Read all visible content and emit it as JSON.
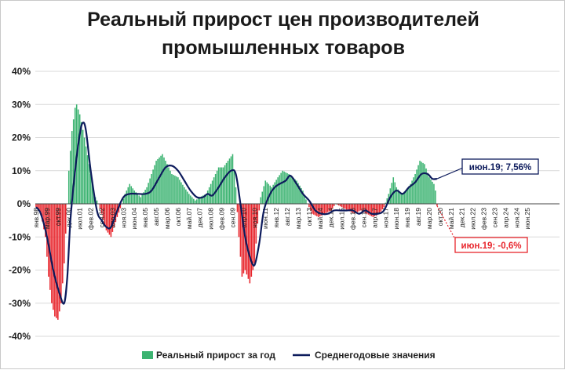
{
  "chart_data": {
    "type": "bar",
    "title_lines": [
      "Реальный прирост цен производителей",
      "промышленных товаров"
    ],
    "y_tick_labels": [
      "40%",
      "30%",
      "20%",
      "10%",
      "0%",
      "-10%",
      "-20%",
      "-30%",
      "-40%"
    ],
    "ylim": [
      -40,
      40
    ],
    "y_ticks": [
      40,
      30,
      20,
      10,
      0,
      -10,
      -20,
      -30,
      -40
    ],
    "grid": true,
    "x_start": "1998-01",
    "x_end": "2025-12",
    "x_tick_labels": [
      "янв.98",
      "мар.99",
      "окт.99",
      "дек.00",
      "июл.01",
      "фев.02",
      "сен.02",
      "апр.03",
      "ноя.03",
      "июн.04",
      "янв.05",
      "авг.05",
      "мар.06",
      "окт.06",
      "май.07",
      "дек.07",
      "июл.08",
      "фев.09",
      "сен.09",
      "апр.10",
      "ноя.10",
      "июн.11",
      "янв.12",
      "авг.12",
      "мар.13",
      "окт.13",
      "май.14",
      "дек.14",
      "июл.15",
      "фев.16",
      "сен.16",
      "апр.17",
      "ноя.17",
      "июн.18",
      "янв.19",
      "авг.19",
      "мар.20",
      "окт.20",
      "май.21",
      "дек.21",
      "июл.22",
      "фев.23",
      "сен.23",
      "апр.24",
      "ноя.24",
      "июн.25"
    ],
    "series": [
      {
        "name": "Реальный прирост за год",
        "type": "bar",
        "colors": {
          "positive": "#3cb371",
          "negative": "#e8262d"
        },
        "anchors": [
          [
            "1998-01",
            -1
          ],
          [
            "1998-04",
            -3
          ],
          [
            "1998-07",
            -10
          ],
          [
            "1998-09",
            -22
          ],
          [
            "1998-11",
            -30
          ],
          [
            "1999-01",
            -34
          ],
          [
            "1999-03",
            -35
          ],
          [
            "1999-05",
            -30
          ],
          [
            "1999-07",
            -18
          ],
          [
            "1999-09",
            0
          ],
          [
            "1999-10",
            10
          ],
          [
            "1999-12",
            22
          ],
          [
            "2000-02",
            29
          ],
          [
            "2000-03",
            30
          ],
          [
            "2000-05",
            27
          ],
          [
            "2000-08",
            20
          ],
          [
            "2000-11",
            12
          ],
          [
            "2001-02",
            3
          ],
          [
            "2001-05",
            0
          ],
          [
            "2001-07",
            -3
          ],
          [
            "2001-10",
            -8
          ],
          [
            "2002-01",
            -10
          ],
          [
            "2002-05",
            -4
          ],
          [
            "2002-08",
            0
          ],
          [
            "2002-10",
            3
          ],
          [
            "2003-01",
            6
          ],
          [
            "2003-04",
            4
          ],
          [
            "2003-08",
            2
          ],
          [
            "2003-12",
            5
          ],
          [
            "2004-03",
            9
          ],
          [
            "2004-06",
            13
          ],
          [
            "2004-10",
            15
          ],
          [
            "2005-01",
            12
          ],
          [
            "2005-04",
            9
          ],
          [
            "2005-08",
            8
          ],
          [
            "2005-12",
            5
          ],
          [
            "2006-03",
            3
          ],
          [
            "2006-07",
            1
          ],
          [
            "2006-10",
            2
          ],
          [
            "2007-02",
            3
          ],
          [
            "2007-06",
            7
          ],
          [
            "2007-10",
            11
          ],
          [
            "2008-01",
            11
          ],
          [
            "2008-04",
            13
          ],
          [
            "2008-07",
            15
          ],
          [
            "2008-09",
            5
          ],
          [
            "2008-11",
            -10
          ],
          [
            "2009-01",
            -22
          ],
          [
            "2009-03",
            -20
          ],
          [
            "2009-06",
            -24
          ],
          [
            "2009-09",
            -18
          ],
          [
            "2009-11",
            -6
          ],
          [
            "2010-01",
            2
          ],
          [
            "2010-04",
            7
          ],
          [
            "2010-08",
            5
          ],
          [
            "2010-12",
            8
          ],
          [
            "2011-03",
            10
          ],
          [
            "2011-07",
            9
          ],
          [
            "2011-12",
            7
          ],
          [
            "2012-04",
            4
          ],
          [
            "2012-07",
            0
          ],
          [
            "2012-10",
            -3
          ],
          [
            "2013-02",
            -4
          ],
          [
            "2013-06",
            -3
          ],
          [
            "2013-10",
            -2
          ],
          [
            "2014-01",
            0
          ],
          [
            "2014-05",
            -1
          ],
          [
            "2014-09",
            -2
          ],
          [
            "2015-01",
            -3
          ],
          [
            "2015-05",
            -2
          ],
          [
            "2015-09",
            -3
          ],
          [
            "2016-01",
            -4
          ],
          [
            "2016-05",
            -3
          ],
          [
            "2016-08",
            -1
          ],
          [
            "2016-11",
            3
          ],
          [
            "2017-02",
            8
          ],
          [
            "2017-04",
            5
          ],
          [
            "2017-07",
            3
          ],
          [
            "2017-10",
            4
          ],
          [
            "2018-01",
            6
          ],
          [
            "2018-04",
            9
          ],
          [
            "2018-07",
            13
          ],
          [
            "2018-10",
            12
          ],
          [
            "2019-01",
            8
          ],
          [
            "2019-04",
            6
          ],
          [
            "2019-05",
            4
          ],
          [
            "2019-06",
            -0.6
          ]
        ]
      },
      {
        "name": "Среднегодовые значения",
        "type": "line",
        "color": "#0d1b5c",
        "anchors": [
          [
            "1998-01",
            -1
          ],
          [
            "1998-04",
            -3
          ],
          [
            "1998-08",
            -10
          ],
          [
            "1998-12",
            -20
          ],
          [
            "1999-04",
            -27
          ],
          [
            "1999-07",
            -30
          ],
          [
            "1999-09",
            -22
          ],
          [
            "1999-11",
            -5
          ],
          [
            "2000-02",
            10
          ],
          [
            "2000-05",
            21
          ],
          [
            "2000-07",
            24.5
          ],
          [
            "2000-09",
            22
          ],
          [
            "2000-12",
            10
          ],
          [
            "2001-04",
            -2
          ],
          [
            "2001-07",
            -5
          ],
          [
            "2001-10",
            -7
          ],
          [
            "2002-01",
            -7
          ],
          [
            "2002-05",
            -2
          ],
          [
            "2002-09",
            2
          ],
          [
            "2003-01",
            3
          ],
          [
            "2003-06",
            3
          ],
          [
            "2003-11",
            3
          ],
          [
            "2004-03",
            4
          ],
          [
            "2004-08",
            8
          ],
          [
            "2004-12",
            11
          ],
          [
            "2005-04",
            11.5
          ],
          [
            "2005-08",
            10
          ],
          [
            "2005-12",
            7
          ],
          [
            "2006-04",
            4
          ],
          [
            "2006-08",
            2
          ],
          [
            "2006-12",
            2
          ],
          [
            "2007-03",
            3
          ],
          [
            "2007-06",
            2.5
          ],
          [
            "2007-10",
            5
          ],
          [
            "2008-02",
            8
          ],
          [
            "2008-06",
            10
          ],
          [
            "2008-09",
            9
          ],
          [
            "2008-12",
            0
          ],
          [
            "2009-03",
            -10
          ],
          [
            "2009-06",
            -16
          ],
          [
            "2009-09",
            -18.5
          ],
          [
            "2009-12",
            -12
          ],
          [
            "2010-03",
            -2
          ],
          [
            "2010-07",
            3
          ],
          [
            "2010-10",
            5
          ],
          [
            "2011-01",
            6
          ],
          [
            "2011-05",
            7
          ],
          [
            "2011-08",
            8.5
          ],
          [
            "2011-12",
            6
          ],
          [
            "2012-04",
            3
          ],
          [
            "2012-08",
            1
          ],
          [
            "2012-12",
            -2
          ],
          [
            "2013-04",
            -3
          ],
          [
            "2013-08",
            -3
          ],
          [
            "2013-12",
            -2
          ],
          [
            "2014-04",
            -2
          ],
          [
            "2014-08",
            -2
          ],
          [
            "2014-12",
            -2
          ],
          [
            "2015-04",
            -3
          ],
          [
            "2015-08",
            -2
          ],
          [
            "2015-12",
            -3
          ],
          [
            "2016-04",
            -3
          ],
          [
            "2016-08",
            -2
          ],
          [
            "2016-12",
            2
          ],
          [
            "2017-04",
            4
          ],
          [
            "2017-08",
            3
          ],
          [
            "2017-12",
            5
          ],
          [
            "2018-04",
            6.5
          ],
          [
            "2018-08",
            9
          ],
          [
            "2018-12",
            9
          ],
          [
            "2019-03",
            7.56
          ],
          [
            "2019-06",
            7.56
          ]
        ]
      }
    ],
    "annotations": [
      {
        "text": "июн.19; 7,56%",
        "series": "Среднегодовые значения",
        "point_date": "2019-06",
        "point_value": 7.56,
        "color": "#0d1b5c"
      },
      {
        "text": "июн.19; -0,6%",
        "series": "Реальный прирост за год",
        "point_date": "2019-06",
        "point_value": -0.6,
        "color": "#e8262d"
      }
    ],
    "legend": {
      "placement": "bottom-center",
      "items": [
        "Реальный прирост за год",
        "Среднегодовые значения"
      ]
    }
  }
}
